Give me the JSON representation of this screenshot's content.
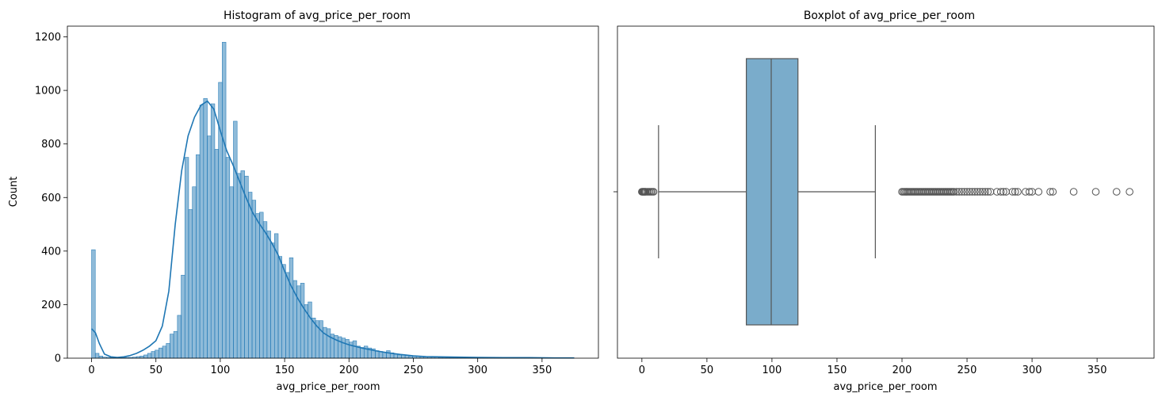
{
  "chart_data": [
    {
      "type": "bar",
      "subtype": "histogram",
      "title": "Histogram of avg_price_per_room",
      "xlabel": "avg_price_per_room",
      "ylabel": "Count",
      "xlim": [
        -18.8,
        393.8
      ],
      "ylim": [
        0,
        1240
      ],
      "xticks": [
        0,
        50,
        100,
        150,
        200,
        250,
        300,
        350
      ],
      "yticks": [
        0,
        200,
        400,
        600,
        800,
        1000,
        1200
      ],
      "bin_start": 0,
      "bin_width": 2.9,
      "values": [
        405,
        18,
        8,
        4,
        3,
        2,
        3,
        2,
        2,
        3,
        3,
        4,
        6,
        8,
        12,
        18,
        25,
        30,
        38,
        45,
        55,
        90,
        100,
        160,
        310,
        750,
        555,
        640,
        760,
        945,
        970,
        830,
        950,
        780,
        1030,
        1180,
        750,
        640,
        885,
        690,
        700,
        680,
        620,
        590,
        540,
        545,
        510,
        475,
        430,
        465,
        380,
        350,
        320,
        375,
        290,
        270,
        280,
        200,
        210,
        150,
        140,
        140,
        115,
        110,
        90,
        85,
        80,
        75,
        70,
        60,
        65,
        45,
        40,
        45,
        38,
        35,
        28,
        25,
        22,
        28,
        20,
        15,
        12,
        12,
        10,
        8,
        8,
        7,
        6,
        5,
        5,
        4,
        4,
        3,
        3,
        2,
        2,
        2,
        2,
        2,
        1,
        1,
        1,
        1,
        1,
        1,
        1,
        1,
        1,
        1,
        1,
        1,
        1,
        1,
        1,
        1,
        1,
        1,
        1,
        1,
        1,
        1,
        1,
        1,
        1,
        1,
        1,
        1,
        1
      ],
      "kde": {
        "x": [
          0,
          3,
          6,
          10,
          15,
          20,
          25,
          30,
          35,
          40,
          45,
          50,
          55,
          60,
          65,
          70,
          75,
          80,
          85,
          90,
          95,
          100,
          105,
          110,
          115,
          120,
          125,
          130,
          135,
          140,
          145,
          150,
          155,
          160,
          165,
          170,
          175,
          180,
          185,
          190,
          195,
          200,
          210,
          220,
          230,
          240,
          250,
          260,
          280,
          300,
          320,
          340,
          360,
          375
        ],
        "y": [
          110,
          95,
          55,
          15,
          5,
          3,
          5,
          10,
          18,
          30,
          45,
          65,
          120,
          250,
          500,
          700,
          830,
          900,
          945,
          960,
          930,
          850,
          775,
          720,
          660,
          600,
          545,
          505,
          470,
          430,
          385,
          325,
          270,
          225,
          185,
          150,
          120,
          95,
          80,
          68,
          58,
          50,
          38,
          28,
          20,
          14,
          9,
          6,
          4,
          3,
          2,
          2,
          1,
          1
        ]
      },
      "color": "#1f77b4"
    },
    {
      "type": "boxplot",
      "title": "Boxplot of avg_price_per_room",
      "xlabel": "avg_price_per_room",
      "xlim": [
        -18.8,
        393.8
      ],
      "xticks": [
        0,
        50,
        100,
        150,
        200,
        250,
        300,
        350
      ],
      "stats": {
        "whisker_low": 12.8,
        "q1": 80.3,
        "median": 99.45,
        "q3": 120.0,
        "whisker_high": 179.5
      },
      "outliers": [
        0,
        0.5,
        1,
        1.5,
        2,
        2.5,
        3,
        4,
        5,
        6,
        7,
        8,
        9,
        200,
        201,
        202,
        203,
        204,
        205,
        206,
        207,
        208,
        209,
        210,
        211,
        212,
        213,
        214,
        215,
        216,
        217,
        218,
        219,
        220,
        221,
        222,
        223,
        224,
        225,
        226,
        227,
        228,
        229,
        230,
        231,
        232,
        233,
        234,
        235,
        236,
        237,
        238,
        239,
        240,
        242,
        244,
        246,
        248,
        250,
        252,
        254,
        256,
        258,
        260,
        262,
        264,
        266,
        268,
        273,
        276,
        278,
        280,
        285,
        287,
        289,
        295,
        298,
        300,
        305,
        314,
        316,
        332,
        349,
        365,
        375
      ],
      "fill_color": "#7aaccb",
      "line_color": "#555555"
    }
  ]
}
